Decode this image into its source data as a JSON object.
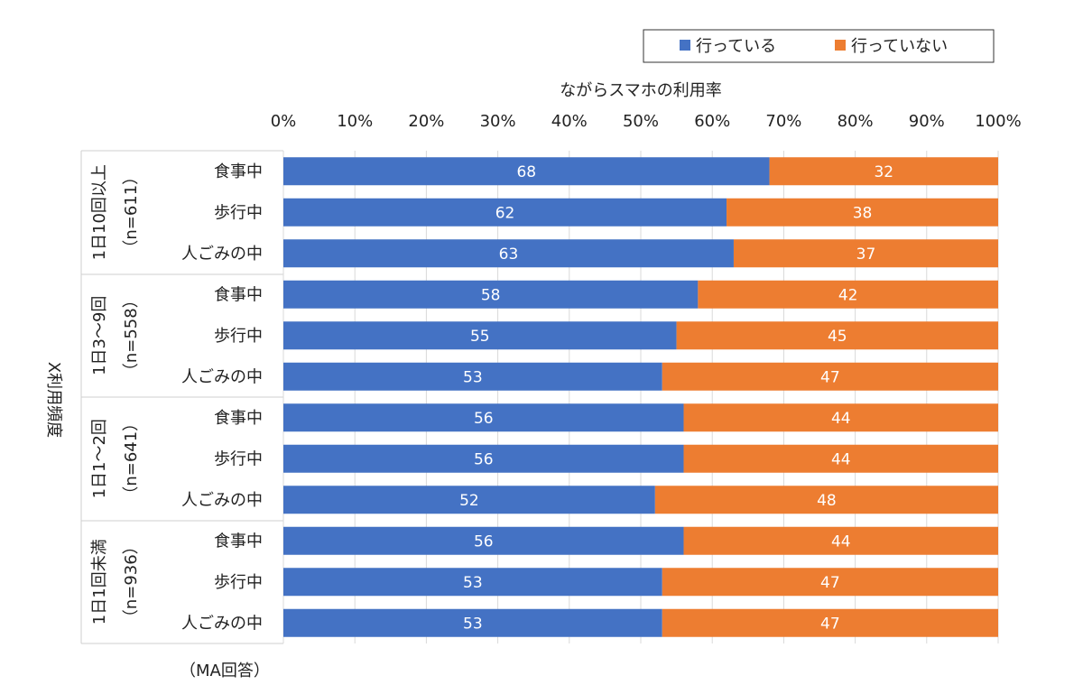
{
  "chart_data": {
    "type": "bar",
    "orientation": "horizontal",
    "stacked": true,
    "title": "ながらスマホの利用率",
    "ylabel": "X利用頻度",
    "note": "（MA回答）",
    "xlim": [
      0,
      100
    ],
    "x_ticks": [
      "0%",
      "10%",
      "20%",
      "30%",
      "40%",
      "50%",
      "60%",
      "70%",
      "80%",
      "90%",
      "100%"
    ],
    "legend_position": "top-right",
    "series": [
      {
        "name": "行っている",
        "color": "#4472C4",
        "values": [
          68,
          62,
          63,
          58,
          55,
          53,
          56,
          56,
          52,
          56,
          53,
          53
        ]
      },
      {
        "name": "行っていない",
        "color": "#ED7D31",
        "values": [
          32,
          38,
          37,
          42,
          45,
          47,
          44,
          44,
          48,
          44,
          47,
          47
        ]
      }
    ],
    "categories": [
      "食事中",
      "歩行中",
      "人ごみの中",
      "食事中",
      "歩行中",
      "人ごみの中",
      "食事中",
      "歩行中",
      "人ごみの中",
      "食事中",
      "歩行中",
      "人ごみの中"
    ],
    "groups": [
      {
        "label": "1日10回以上",
        "n": "（n=611）"
      },
      {
        "label": "1日3～9回",
        "n": "（n=558）"
      },
      {
        "label": "1日1～2回",
        "n": "（n=641）"
      },
      {
        "label": "1日1回未満",
        "n": "（n=936）"
      }
    ]
  }
}
